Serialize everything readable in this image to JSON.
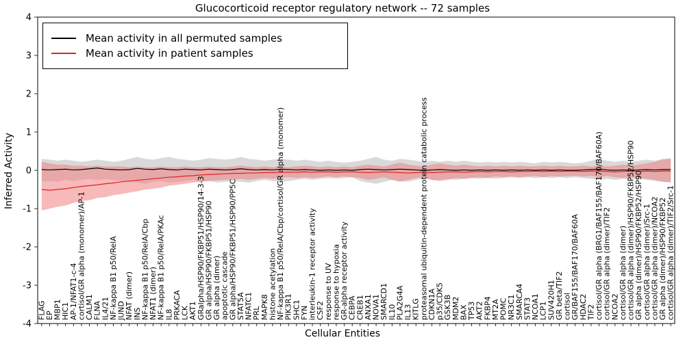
{
  "chart": {
    "title": "Glucocorticoid receptor regulatory network -- 72 samples",
    "xlabel": "Cellular Entities",
    "ylabel": "Inferred Activity",
    "legend": [
      {
        "label": "Mean activity in all permuted samples",
        "color": "#000000"
      },
      {
        "label": "Mean activity in patient samples",
        "color": "#e02020"
      }
    ]
  },
  "chart_data": {
    "type": "line",
    "title": "Glucocorticoid receptor regulatory network -- 72 samples",
    "xlabel": "Cellular Entities",
    "ylabel": "Inferred Activity",
    "ylim": [
      -4,
      4
    ],
    "yticks": [
      -4,
      -3,
      -2,
      -1,
      0,
      1,
      2,
      3,
      4
    ],
    "grid": false,
    "legend_position": "upper left",
    "categories": [
      "FLAG",
      "EP",
      "MBP1",
      "HIC1",
      "AP-1/NFAT1-c-4",
      "cortisol/GR alpha (monomer)/AP-1",
      "CALM1",
      "FLNA",
      "IL4/21",
      "NF-kappa B1 p50/RelA",
      "JUND",
      "NFAT (dimer)",
      "INS",
      "NF-kappa B1 p50/RelA/Cbp",
      "NFAT1 (dimer)",
      "NF-kappa B1 p50/RelA/PKAc",
      "IL8",
      "PRKACA",
      "LCK",
      "AKT1",
      "GRalpha/HSP90/FKBP51/HSP90/14-3-3",
      "GR alpha/HSP90/FKBP51/HSP90",
      "GR alpha (dimer)",
      "apoptotic cascade",
      "GR alpha/HSP90/FKBP51/HSP90/PP5C",
      "STAT5A",
      "NFATC1",
      "PRL",
      "MAPK8",
      "histone acetylation",
      "NF-kappa B1 p50/RelA/Cbp/cortisol/GR alpha (monomer)",
      "PIK3R1",
      "SHC1",
      "FYN",
      "interleukin-1 receptor activity",
      "CSF2",
      "response to UV",
      "response to hypoxia",
      "GR-alpha receptor activity",
      "CEBPA",
      "CREB1",
      "ANXA1",
      "NOVA1",
      "SMARCD1",
      "IL10",
      "PLA2G4A",
      "IL13",
      "KITLG",
      "proteasomal ubiquitin-dependent protein catabolic process",
      "CDKN1A",
      "p35/CDK5",
      "GSK3B",
      "MDM2",
      "BAX",
      "TP53",
      "AKT2",
      "FKBP4",
      "MT2A",
      "POMC",
      "NR3C1",
      "SMARCA4",
      "STAT3",
      "NCOA1",
      "LCP1",
      "SUV420H1",
      "GR beta/TIF2",
      "cortisol",
      "GR/BAF155/BAF170/BAF60A",
      "HDAC2",
      "TIF2",
      "cortisol/GR alpha (BRG1/BAF155/BAF170/BAF60A)",
      "cortisol/GR alpha (dimer)/TIF2",
      "NCOA2",
      "cortisol/GR alpha (dimer)",
      "cortisol/GR alpha (dimer)/HSP90/FKBP52/HSP90",
      "GR alpha (dimer)/HSP90/FKBP52/HSP90",
      "cortisol/GR alpha (dimer)/Src-1",
      "cortisol/GR alpha (dimer)/NCOA2",
      "GR alpha (dimer)/HSP90/FKBP52",
      "cortisol/GR alpha (dimer)/TIF2/Src-1"
    ],
    "series": [
      {
        "name": "Mean activity in all permuted samples",
        "color": "#000000",
        "band_color": "#aaaaaa",
        "band_opacity": 0.45,
        "values": [
          0.02,
          0.01,
          0.02,
          0.03,
          0.01,
          0.02,
          0.04,
          0.06,
          0.03,
          0.02,
          0.01,
          0.02,
          0.05,
          0.03,
          0.02,
          0.04,
          0.02,
          0.01,
          0.03,
          0.02,
          0.01,
          0.03,
          0.02,
          0.01,
          0.02,
          0.04,
          0.02,
          0.01,
          0.02,
          0.01,
          0.03,
          0.02,
          0.01,
          0.02,
          0.01,
          0.0,
          0.01,
          0.0,
          0.01,
          0.0,
          0.02,
          0.03,
          0.02,
          0.01,
          0.02,
          0.03,
          0.02,
          0.01,
          0.0,
          0.01,
          0.02,
          0.01,
          0.0,
          0.01,
          0.0,
          0.01,
          0.0,
          0.01,
          0.0,
          0.01,
          0.0,
          0.01,
          0.0,
          0.01,
          0.0,
          0.01,
          0.0,
          0.0,
          0.01,
          0.02,
          0.03,
          0.01,
          0.0,
          0.01,
          0.0,
          0.01,
          0.02,
          0.01,
          0.02,
          0.02
        ],
        "band_upper": [
          0.3,
          0.28,
          0.25,
          0.28,
          0.25,
          0.22,
          0.25,
          0.28,
          0.25,
          0.22,
          0.25,
          0.3,
          0.35,
          0.3,
          0.28,
          0.32,
          0.35,
          0.3,
          0.28,
          0.25,
          0.28,
          0.32,
          0.3,
          0.28,
          0.3,
          0.35,
          0.3,
          0.28,
          0.25,
          0.28,
          0.3,
          0.28,
          0.25,
          0.28,
          0.25,
          0.22,
          0.25,
          0.22,
          0.2,
          0.22,
          0.25,
          0.3,
          0.35,
          0.28,
          0.25,
          0.3,
          0.28,
          0.25,
          0.22,
          0.25,
          0.22,
          0.25,
          0.22,
          0.25,
          0.22,
          0.2,
          0.22,
          0.2,
          0.22,
          0.2,
          0.22,
          0.2,
          0.18,
          0.22,
          0.2,
          0.22,
          0.2,
          0.18,
          0.2,
          0.25,
          0.3,
          0.25,
          0.22,
          0.25,
          0.22,
          0.25,
          0.28,
          0.25,
          0.3,
          0.32
        ],
        "band_lower": [
          -0.3,
          -0.28,
          -0.3,
          -0.25,
          -0.28,
          -0.25,
          -0.22,
          -0.25,
          -0.22,
          -0.25,
          -0.28,
          -0.3,
          -0.32,
          -0.35,
          -0.3,
          -0.28,
          -0.32,
          -0.3,
          -0.28,
          -0.25,
          -0.3,
          -0.28,
          -0.32,
          -0.3,
          -0.28,
          -0.3,
          -0.32,
          -0.28,
          -0.25,
          -0.28,
          -0.3,
          -0.28,
          -0.25,
          -0.22,
          -0.25,
          -0.22,
          -0.2,
          -0.22,
          -0.2,
          -0.18,
          -0.28,
          -0.32,
          -0.35,
          -0.3,
          -0.25,
          -0.28,
          -0.3,
          -0.25,
          -0.22,
          -0.25,
          -0.25,
          -0.22,
          -0.25,
          -0.22,
          -0.2,
          -0.22,
          -0.2,
          -0.22,
          -0.2,
          -0.18,
          -0.2,
          -0.18,
          -0.2,
          -0.18,
          -0.2,
          -0.18,
          -0.2,
          -0.18,
          -0.2,
          -0.22,
          -0.25,
          -0.22,
          -0.25,
          -0.22,
          -0.25,
          -0.22,
          -0.25,
          -0.28,
          -0.3,
          -0.3
        ]
      },
      {
        "name": "Mean activity in patient samples",
        "color": "#e02020",
        "band_color": "#f08080",
        "band_opacity": 0.55,
        "values": [
          -0.5,
          -0.52,
          -0.5,
          -0.48,
          -0.45,
          -0.42,
          -0.4,
          -0.38,
          -0.35,
          -0.33,
          -0.3,
          -0.28,
          -0.26,
          -0.24,
          -0.22,
          -0.2,
          -0.18,
          -0.17,
          -0.15,
          -0.14,
          -0.12,
          -0.11,
          -0.1,
          -0.09,
          -0.08,
          -0.08,
          -0.07,
          -0.07,
          -0.06,
          -0.06,
          -0.05,
          -0.05,
          -0.05,
          -0.04,
          -0.05,
          -0.04,
          -0.04,
          -0.05,
          -0.04,
          -0.04,
          -0.05,
          -0.06,
          -0.05,
          -0.04,
          -0.05,
          -0.06,
          -0.07,
          -0.06,
          -0.05,
          -0.06,
          -0.05,
          -0.04,
          -0.04,
          -0.05,
          -0.04,
          -0.03,
          -0.04,
          -0.03,
          -0.03,
          -0.04,
          -0.03,
          -0.03,
          -0.02,
          -0.03,
          -0.02,
          -0.03,
          -0.02,
          -0.02,
          -0.03,
          -0.02,
          -0.02,
          -0.03,
          -0.04,
          -0.03,
          -0.02,
          -0.03,
          -0.02,
          -0.03,
          -0.02,
          -0.02
        ],
        "band_upper": [
          0.22,
          0.18,
          0.15,
          0.15,
          0.12,
          0.12,
          0.1,
          0.12,
          0.1,
          0.1,
          0.1,
          0.08,
          0.1,
          0.08,
          0.08,
          0.1,
          0.08,
          0.08,
          0.1,
          0.08,
          0.08,
          0.1,
          0.08,
          0.08,
          0.1,
          0.12,
          0.1,
          0.08,
          0.1,
          0.08,
          0.1,
          0.08,
          0.1,
          0.12,
          0.1,
          0.08,
          0.1,
          0.08,
          0.1,
          0.08,
          0.12,
          0.15,
          0.12,
          0.1,
          0.15,
          0.2,
          0.15,
          0.12,
          0.1,
          0.15,
          0.18,
          0.15,
          0.12,
          0.15,
          0.12,
          0.1,
          0.12,
          0.1,
          0.12,
          0.1,
          0.12,
          0.1,
          0.1,
          0.12,
          0.1,
          0.12,
          0.1,
          0.1,
          0.12,
          0.1,
          0.12,
          0.1,
          0.12,
          0.15,
          0.12,
          0.15,
          0.18,
          0.22,
          0.28,
          0.3
        ],
        "band_lower": [
          -1.05,
          -1.0,
          -0.95,
          -0.92,
          -0.85,
          -0.8,
          -0.78,
          -0.72,
          -0.7,
          -0.65,
          -0.62,
          -0.58,
          -0.55,
          -0.5,
          -0.48,
          -0.45,
          -0.4,
          -0.38,
          -0.35,
          -0.32,
          -0.3,
          -0.28,
          -0.26,
          -0.25,
          -0.24,
          -0.22,
          -0.25,
          -0.22,
          -0.2,
          -0.22,
          -0.2,
          -0.18,
          -0.2,
          -0.18,
          -0.2,
          -0.18,
          -0.16,
          -0.18,
          -0.16,
          -0.18,
          -0.2,
          -0.25,
          -0.22,
          -0.18,
          -0.25,
          -0.3,
          -0.25,
          -0.2,
          -0.18,
          -0.25,
          -0.28,
          -0.25,
          -0.2,
          -0.22,
          -0.2,
          -0.18,
          -0.2,
          -0.16,
          -0.18,
          -0.16,
          -0.18,
          -0.16,
          -0.15,
          -0.18,
          -0.15,
          -0.16,
          -0.15,
          -0.14,
          -0.16,
          -0.15,
          -0.18,
          -0.15,
          -0.18,
          -0.2,
          -0.18,
          -0.2,
          -0.22,
          -0.25,
          -0.3,
          -0.32
        ]
      }
    ]
  }
}
